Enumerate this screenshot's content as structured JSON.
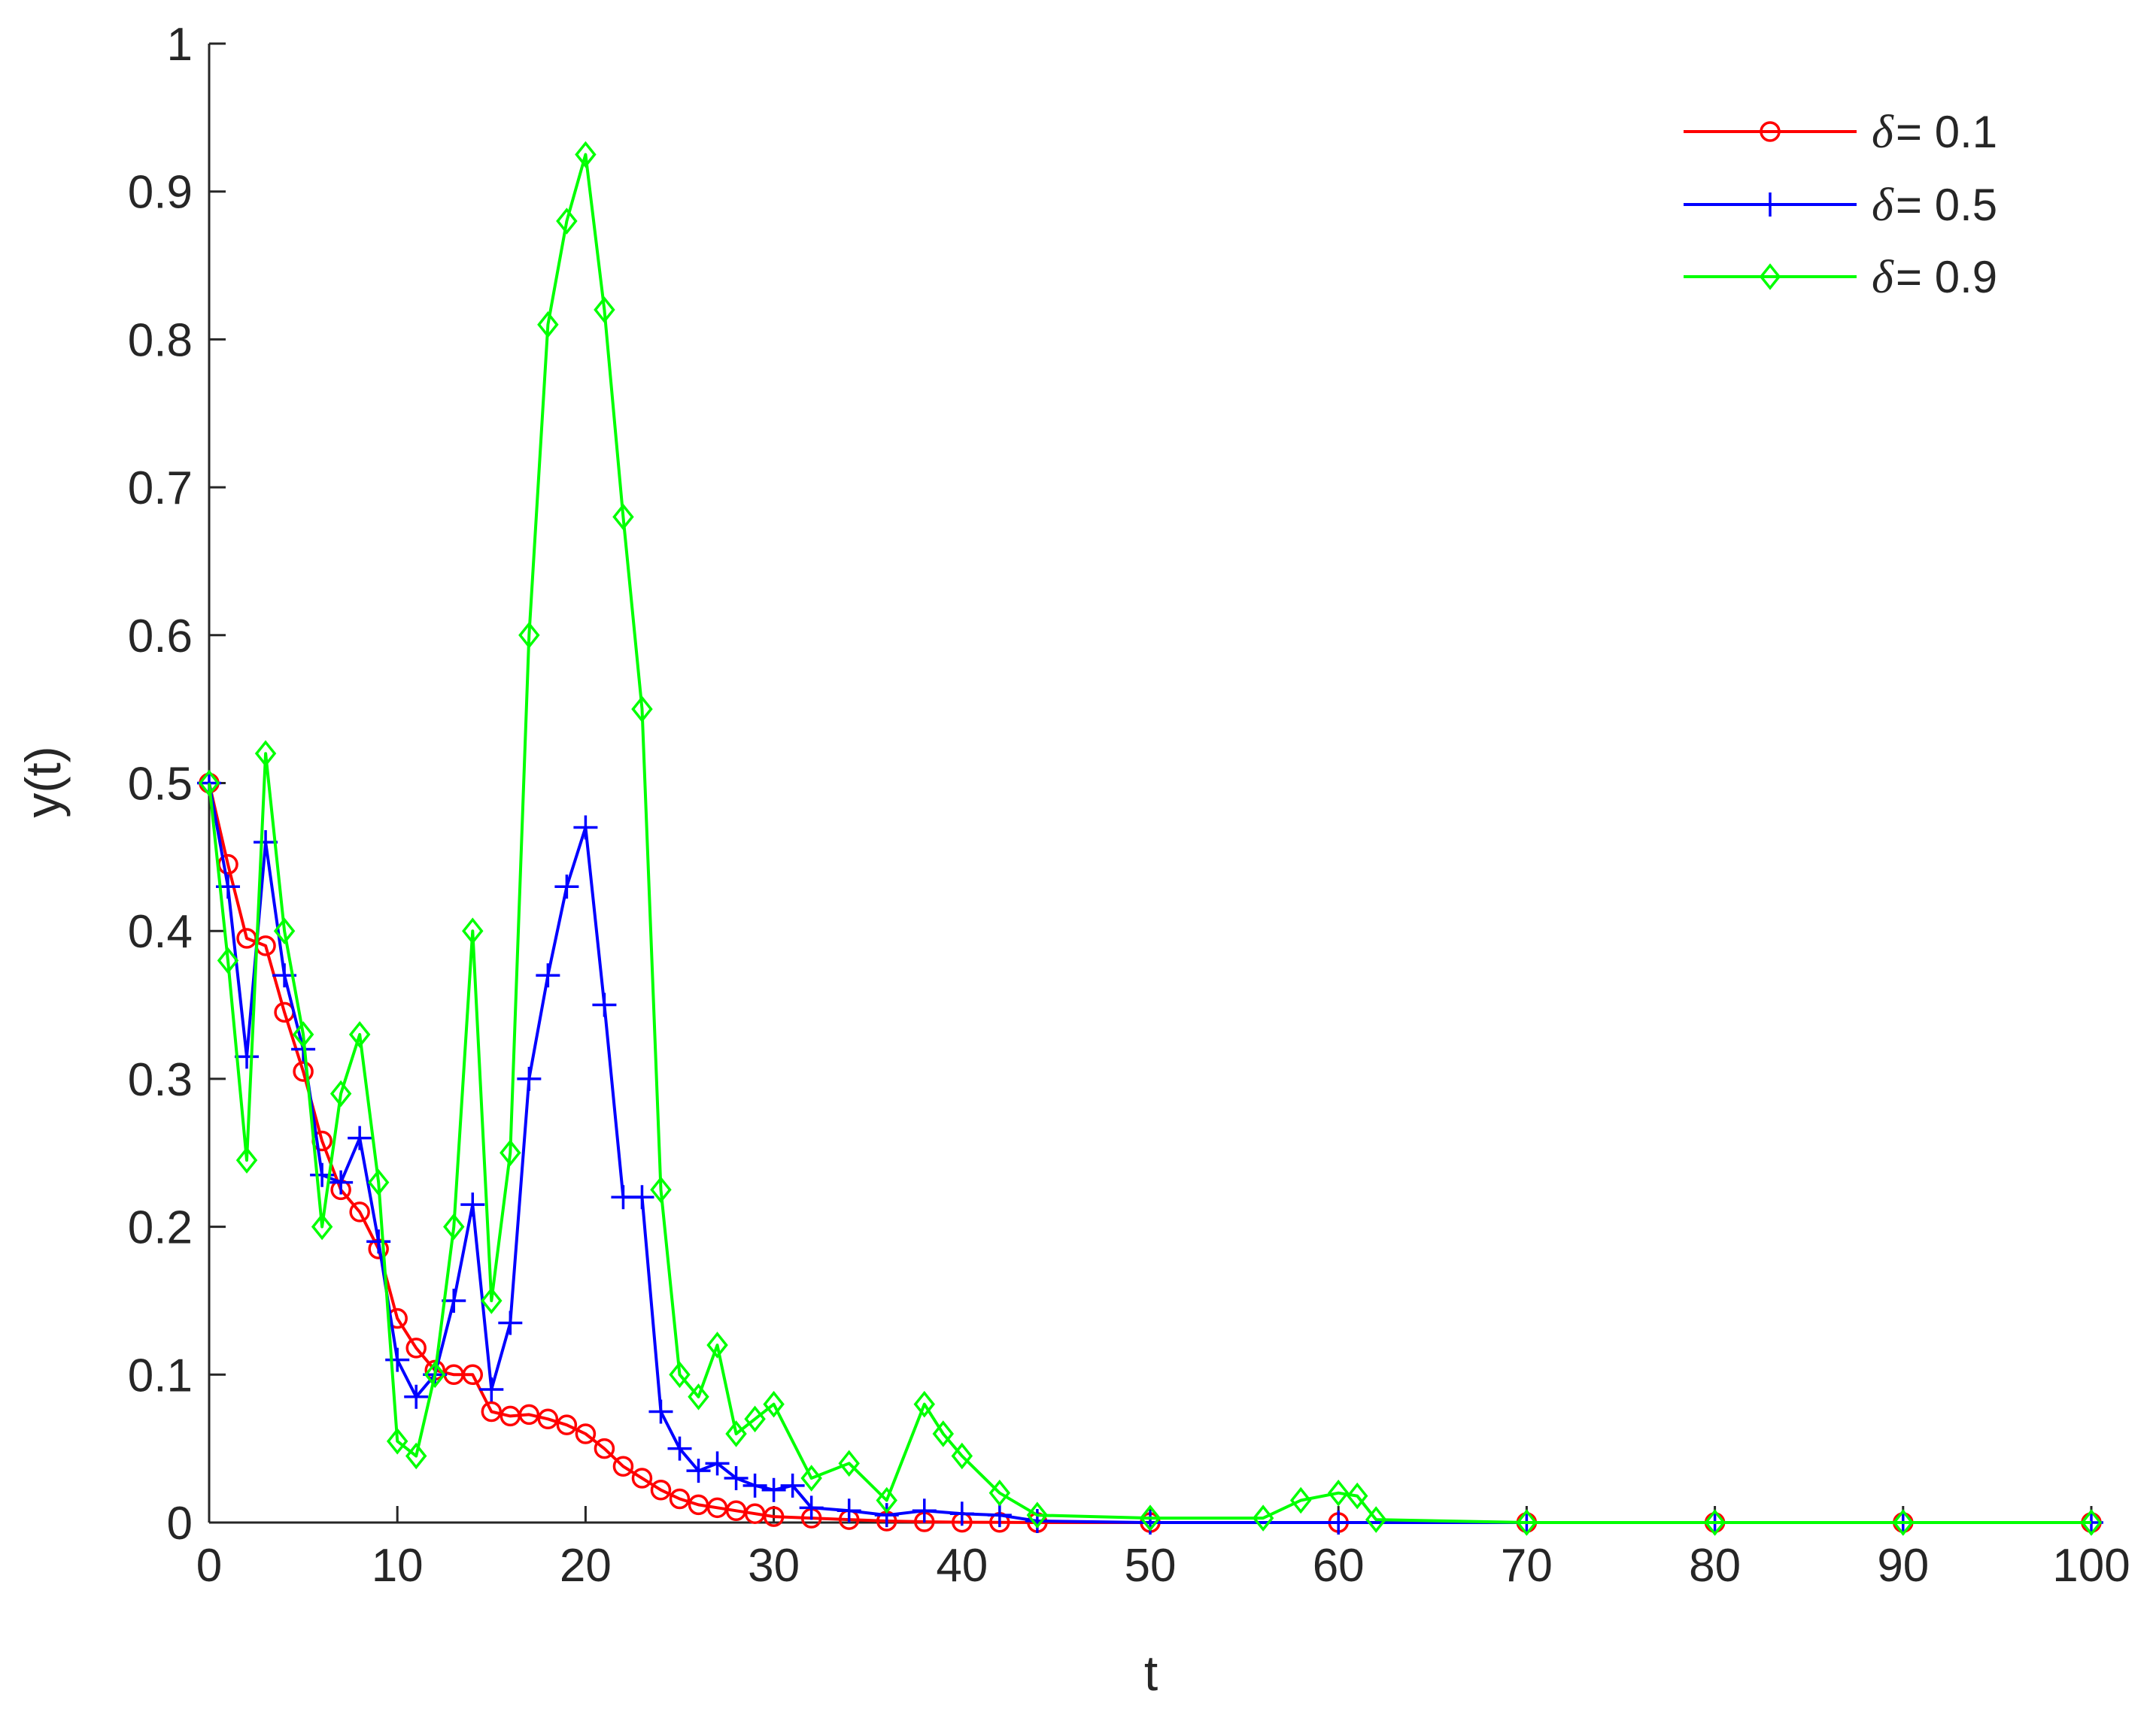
{
  "chart_data": {
    "type": "line",
    "xlabel": "t",
    "ylabel": "y(t)",
    "xlim": [
      0,
      100
    ],
    "ylim": [
      0,
      1
    ],
    "xticks": [
      "0",
      "10",
      "20",
      "30",
      "40",
      "50",
      "60",
      "70",
      "80",
      "90",
      "100"
    ],
    "yticks": [
      "0",
      "0.1",
      "0.2",
      "0.3",
      "0.4",
      "0.5",
      "0.6",
      "0.7",
      "0.8",
      "0.9",
      "1"
    ],
    "grid": false,
    "legend_position": "top-right",
    "series": [
      {
        "name": "= 0.1",
        "symbol": "δ",
        "color": "#ff0000",
        "marker": "circle",
        "x": [
          0,
          1,
          2,
          3,
          4,
          5,
          6,
          7,
          8,
          9,
          10,
          11,
          12,
          13,
          14,
          15,
          16,
          17,
          18,
          19,
          20,
          21,
          22,
          23,
          24,
          25,
          26,
          27,
          28,
          29,
          30,
          32,
          34,
          36,
          38,
          40,
          42,
          44,
          50,
          60,
          70,
          80,
          90,
          100
        ],
        "y": [
          0.5,
          0.445,
          0.395,
          0.39,
          0.345,
          0.305,
          0.258,
          0.225,
          0.21,
          0.185,
          0.138,
          0.118,
          0.103,
          0.1,
          0.1,
          0.075,
          0.072,
          0.073,
          0.07,
          0.066,
          0.06,
          0.05,
          0.038,
          0.03,
          0.022,
          0.016,
          0.012,
          0.01,
          0.008,
          0.006,
          0.004,
          0.003,
          0.002,
          0.001,
          0.0005,
          0.0002,
          0.0001,
          0.0,
          0.0,
          0.0,
          0.0,
          0.0,
          0.0,
          0.0
        ]
      },
      {
        "name": "= 0.5",
        "symbol": "δ",
        "color": "#0000ff",
        "marker": "plus",
        "x": [
          0,
          1,
          2,
          3,
          4,
          5,
          6,
          7,
          8,
          9,
          10,
          11,
          12,
          13,
          14,
          15,
          16,
          17,
          18,
          19,
          20,
          21,
          22,
          23,
          24,
          25,
          26,
          27,
          28,
          29,
          30,
          31,
          32,
          34,
          36,
          38,
          40,
          42,
          44,
          50,
          60,
          70,
          80,
          90,
          100
        ],
        "y": [
          0.5,
          0.43,
          0.315,
          0.46,
          0.37,
          0.32,
          0.235,
          0.23,
          0.26,
          0.19,
          0.11,
          0.085,
          0.1,
          0.15,
          0.215,
          0.09,
          0.135,
          0.3,
          0.37,
          0.43,
          0.47,
          0.35,
          0.22,
          0.22,
          0.075,
          0.05,
          0.035,
          0.04,
          0.03,
          0.025,
          0.022,
          0.025,
          0.01,
          0.008,
          0.005,
          0.008,
          0.006,
          0.005,
          0.001,
          0.0,
          0.0,
          0.0,
          0.0,
          0.0,
          0.0
        ]
      },
      {
        "name": "= 0.9",
        "symbol": "δ",
        "color": "#00ff00",
        "marker": "diamond",
        "x": [
          0,
          1,
          2,
          3,
          4,
          5,
          6,
          7,
          8,
          9,
          10,
          11,
          12,
          13,
          14,
          15,
          16,
          17,
          18,
          19,
          20,
          21,
          22,
          23,
          24,
          25,
          26,
          27,
          28,
          29,
          30,
          32,
          34,
          36,
          38,
          39,
          40,
          42,
          44,
          50,
          56,
          58,
          60,
          61,
          62,
          70,
          80,
          90,
          100
        ],
        "y": [
          0.5,
          0.38,
          0.245,
          0.52,
          0.4,
          0.33,
          0.2,
          0.29,
          0.33,
          0.23,
          0.055,
          0.045,
          0.1,
          0.2,
          0.4,
          0.15,
          0.25,
          0.6,
          0.81,
          0.88,
          0.925,
          0.82,
          0.68,
          0.55,
          0.225,
          0.1,
          0.085,
          0.12,
          0.06,
          0.07,
          0.08,
          0.03,
          0.04,
          0.015,
          0.08,
          0.06,
          0.045,
          0.02,
          0.005,
          0.003,
          0.003,
          0.015,
          0.02,
          0.018,
          0.002,
          0.0,
          0.0,
          0.0,
          0.0
        ]
      }
    ]
  }
}
